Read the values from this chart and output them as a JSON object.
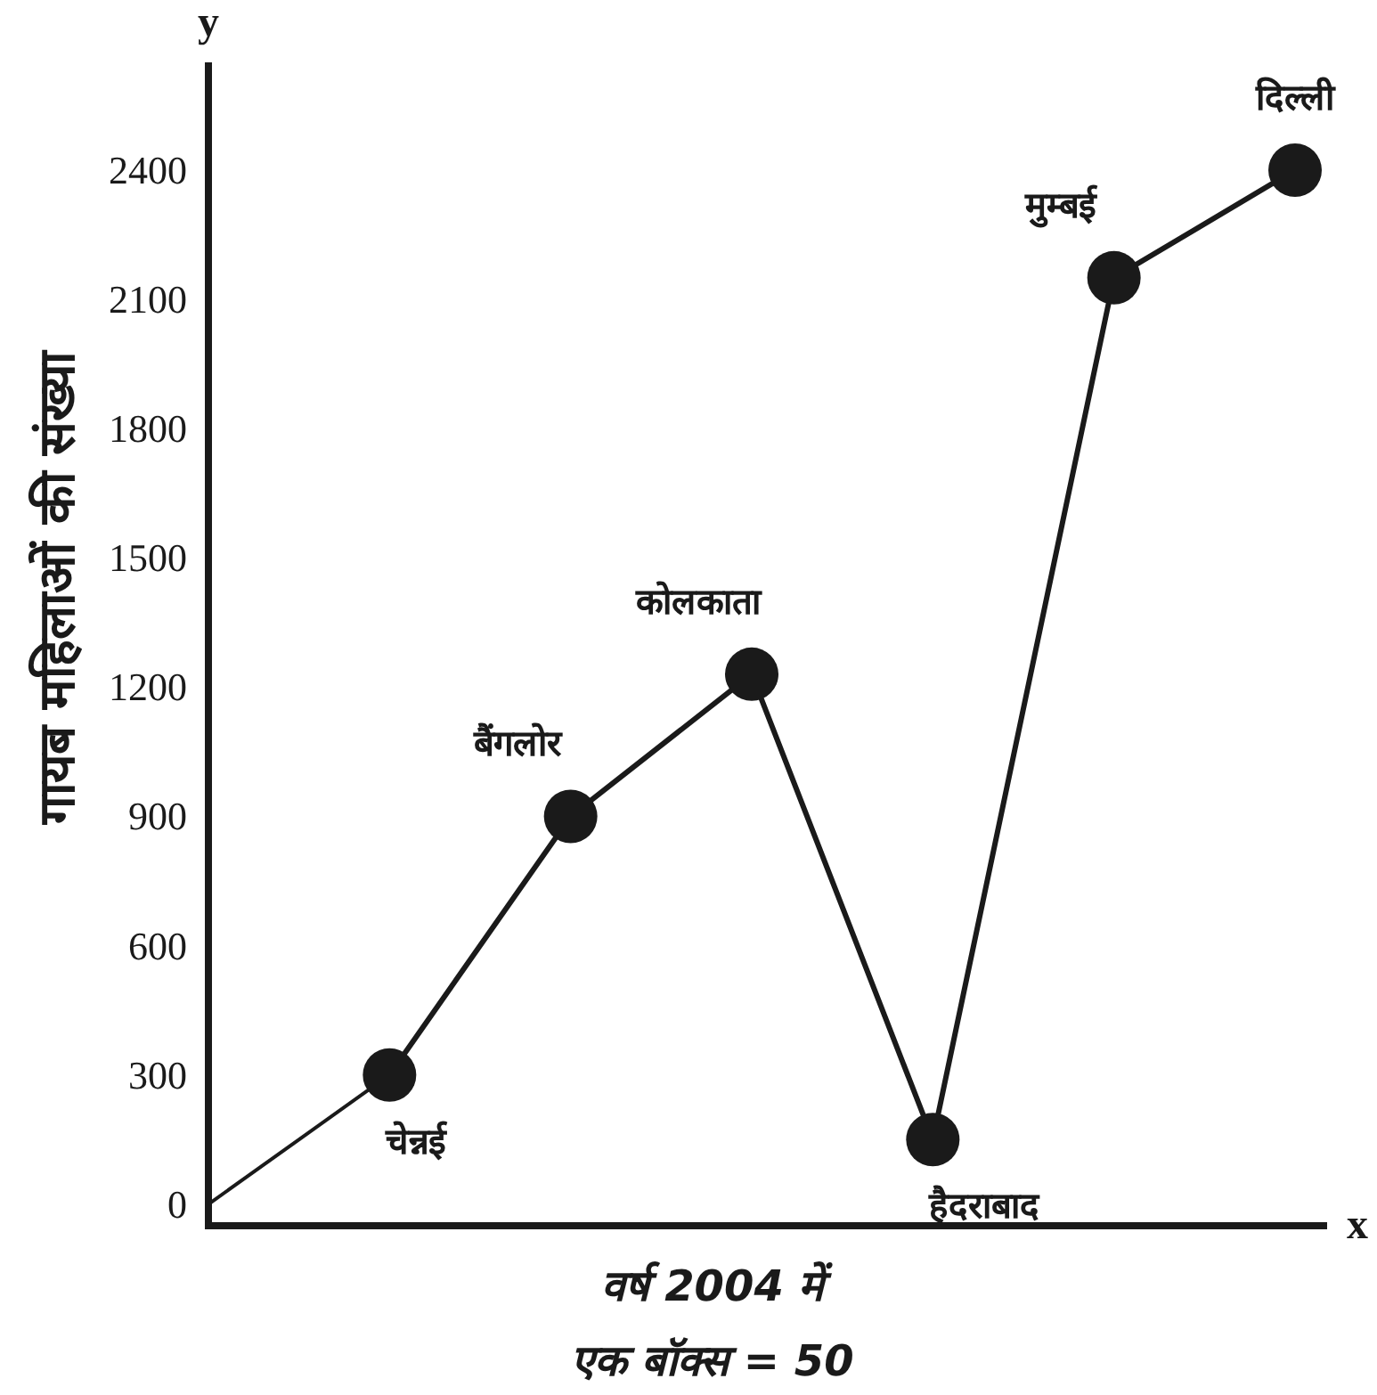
{
  "chart_data": {
    "type": "line",
    "ylabel": "गायब महिलाओं की संख्या",
    "xlabel": "वर्ष 2004 में",
    "annotations": [
      "एक बॉक्स = 50",
      "x",
      "y"
    ],
    "categories": [
      null,
      "चेन्नई",
      "बैंगलोर",
      "कोलकाता",
      "हैदराबाद",
      "मुम्बई",
      "दिल्ली"
    ],
    "series": [
      {
        "color": "#1a1a1a",
        "marker": "none",
        "values": [
          0,
          300,
          null,
          null,
          null,
          null,
          null
        ]
      },
      {
        "color": "#1a1a1a",
        "marker": "circle",
        "values": [
          null,
          300,
          900,
          1230,
          150,
          2150,
          2400
        ]
      }
    ],
    "ylim": [
      -50,
      2650
    ],
    "yticks": [
      0,
      300,
      600,
      900,
      1200,
      1500,
      1800,
      2100,
      2400
    ],
    "grid": false
  }
}
